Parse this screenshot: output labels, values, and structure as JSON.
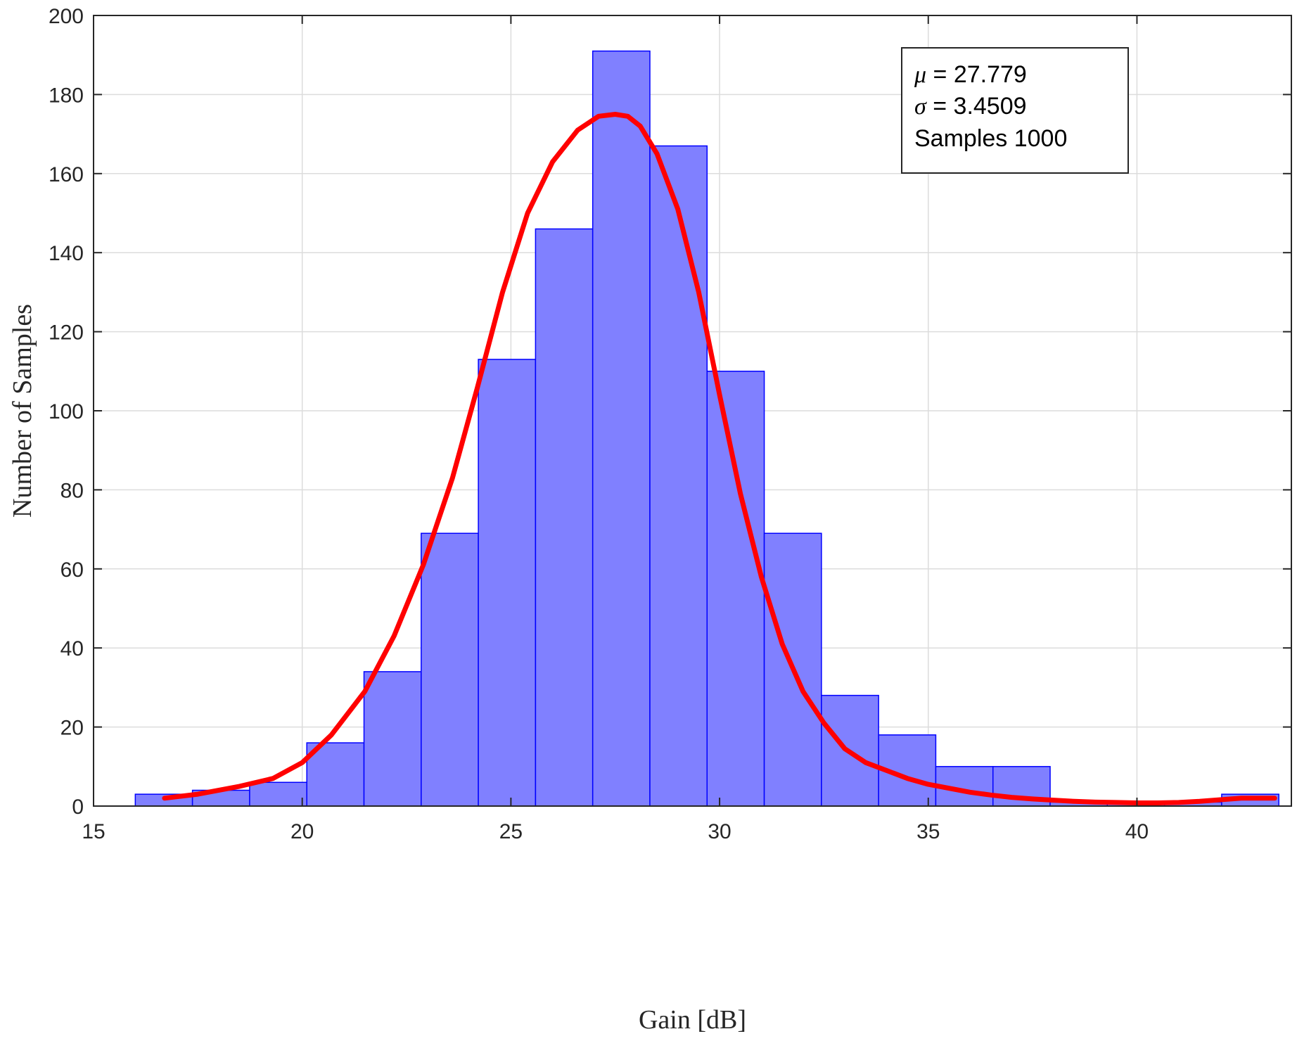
{
  "chart_data": {
    "type": "bar",
    "title": "",
    "xlabel": "Gain [dB]",
    "ylabel": "Number of Samples",
    "xlim": [
      15,
      43.7
    ],
    "ylim": [
      0,
      200
    ],
    "xticks": [
      15,
      20,
      25,
      30,
      35,
      40
    ],
    "yticks": [
      0,
      20,
      40,
      60,
      80,
      100,
      120,
      140,
      160,
      180,
      200
    ],
    "grid": true,
    "bin_edges": [
      16.0,
      17.37,
      18.74,
      20.11,
      21.48,
      22.85,
      24.22,
      25.59,
      26.96,
      28.33,
      29.7,
      31.07,
      32.44,
      33.81,
      35.18,
      36.55,
      37.92,
      39.29,
      40.66,
      42.03,
      43.4
    ],
    "counts": [
      3,
      4,
      6,
      16,
      34,
      69,
      113,
      146,
      191,
      167,
      110,
      69,
      28,
      18,
      10,
      10,
      1,
      1,
      1,
      3
    ],
    "bar_color": "#8080ff",
    "bar_edge_color": "#0000ff",
    "fit_curve": {
      "color": "#ff0000",
      "x": [
        16.7,
        17.5,
        18.5,
        19.3,
        20.0,
        20.7,
        21.5,
        22.2,
        22.9,
        23.6,
        24.2,
        24.8,
        25.4,
        26.0,
        26.6,
        27.1,
        27.5,
        27.8,
        28.1,
        28.5,
        29.0,
        29.5,
        30.0,
        30.5,
        31.0,
        31.5,
        32.0,
        32.5,
        33.0,
        33.5,
        34.0,
        34.5,
        35.0,
        35.5,
        36.0,
        36.5,
        37.0,
        37.5,
        38.0,
        38.5,
        39.0,
        39.5,
        40.0,
        40.5,
        41.0,
        41.5,
        42.0,
        42.5,
        43.3
      ],
      "y": [
        2,
        3,
        5,
        7,
        11,
        18,
        29,
        43,
        61,
        83,
        106,
        130,
        150,
        163,
        171,
        174.5,
        175,
        174.5,
        172,
        165,
        151,
        130,
        104,
        79,
        58,
        41,
        29,
        21,
        14.5,
        11,
        9,
        7,
        5.5,
        4.5,
        3.5,
        2.8,
        2.2,
        1.8,
        1.5,
        1.2,
        1,
        0.9,
        0.8,
        0.8,
        0.9,
        1.2,
        1.6,
        2,
        2
      ]
    },
    "annotation": {
      "mu_symbol": "μ",
      "mu_text": " = 27.779",
      "sigma_symbol": "σ",
      "sigma_text": " = 3.4509",
      "samples_text": "Samples 1000"
    }
  }
}
